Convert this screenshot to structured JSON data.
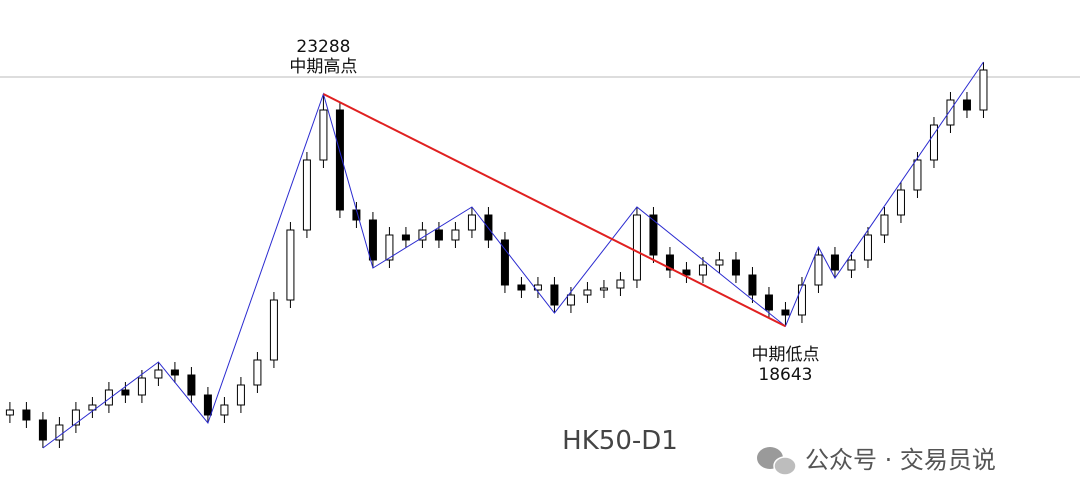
{
  "chart_data": {
    "type": "candlestick",
    "title": "HK50-D1",
    "xlim": [
      -0.6,
      64.85
    ],
    "ylim": [
      15088,
      25168
    ],
    "open": [
      16868,
      16968,
      16768,
      16368,
      16668,
      16968,
      17068,
      17368,
      17268,
      17608,
      17768,
      17668,
      17268,
      16868,
      17068,
      17468,
      17968,
      19168,
      20568,
      21968,
      22968,
      20968,
      20768,
      19968,
      20468,
      20368,
      20568,
      20368,
      20568,
      20868,
      20368,
      19468,
      19368,
      19468,
      19068,
      19268,
      19368,
      19408,
      19568,
      20868,
      20068,
      19768,
      19668,
      19868,
      19968,
      19668,
      19268,
      18968,
      18868,
      19468,
      20068,
      19768,
      19968,
      20468,
      20868,
      21368,
      21968,
      22668,
      23168,
      22968
    ],
    "high": [
      17128,
      17128,
      16928,
      16828,
      17128,
      17228,
      17528,
      17528,
      17768,
      17928,
      17928,
      17828,
      17428,
      17228,
      17628,
      18128,
      19328,
      20728,
      22128,
      23288,
      23128,
      21128,
      20928,
      20628,
      20628,
      20728,
      20728,
      20728,
      21028,
      21028,
      20528,
      19628,
      19628,
      19628,
      19428,
      19528,
      19568,
      19728,
      21028,
      21028,
      20228,
      19928,
      20028,
      20128,
      20128,
      19828,
      19428,
      19128,
      19628,
      20228,
      20228,
      20128,
      20628,
      21028,
      21528,
      22128,
      22828,
      23328,
      23328,
      23928
    ],
    "low": [
      16708,
      16608,
      16208,
      16208,
      16508,
      16808,
      16908,
      17108,
      17108,
      17448,
      17508,
      17108,
      16708,
      16708,
      16908,
      17308,
      17808,
      19008,
      20408,
      21808,
      20808,
      20608,
      19808,
      19808,
      20208,
      20208,
      20208,
      20208,
      20408,
      20208,
      19308,
      19208,
      19208,
      18908,
      18908,
      19108,
      19208,
      19248,
      19408,
      19908,
      19608,
      19508,
      19508,
      19708,
      19508,
      19108,
      18808,
      18643,
      18708,
      19308,
      19608,
      19608,
      19808,
      20308,
      20708,
      21208,
      21808,
      22508,
      22808,
      22808
    ],
    "close": [
      16968,
      16768,
      16368,
      16668,
      16968,
      17068,
      17368,
      17268,
      17608,
      17768,
      17668,
      17268,
      16868,
      17068,
      17468,
      17968,
      19168,
      20568,
      21968,
      22968,
      20968,
      20768,
      19968,
      20468,
      20368,
      20568,
      20368,
      20568,
      20868,
      20368,
      19468,
      19368,
      19468,
      19068,
      19268,
      19368,
      19408,
      19568,
      20868,
      20068,
      19768,
      19668,
      19868,
      19968,
      19668,
      19268,
      18968,
      18868,
      19468,
      20068,
      19768,
      19968,
      20468,
      20868,
      21368,
      21968,
      22668,
      23168,
      22968,
      23768
    ],
    "zigzag": {
      "index": [
        2,
        9,
        12,
        19,
        22,
        28,
        33,
        38,
        47,
        49,
        50,
        59
      ],
      "price": [
        16208,
        17928,
        16708,
        23288,
        19808,
        21028,
        18908,
        21028,
        18643,
        20228,
        19608,
        23928
      ],
      "color": "#2b2bd0"
    },
    "trendline": {
      "index": [
        19,
        47
      ],
      "price": [
        23288,
        18643
      ],
      "color": "#e02020"
    },
    "hline": 23628,
    "annotations": [
      {
        "index": 19,
        "lines": [
          "23288",
          "中期高点"
        ]
      },
      {
        "index": 47,
        "lines": [
          "中期低点",
          "18643"
        ]
      }
    ],
    "watermark": "公众号 · 交易员说"
  }
}
